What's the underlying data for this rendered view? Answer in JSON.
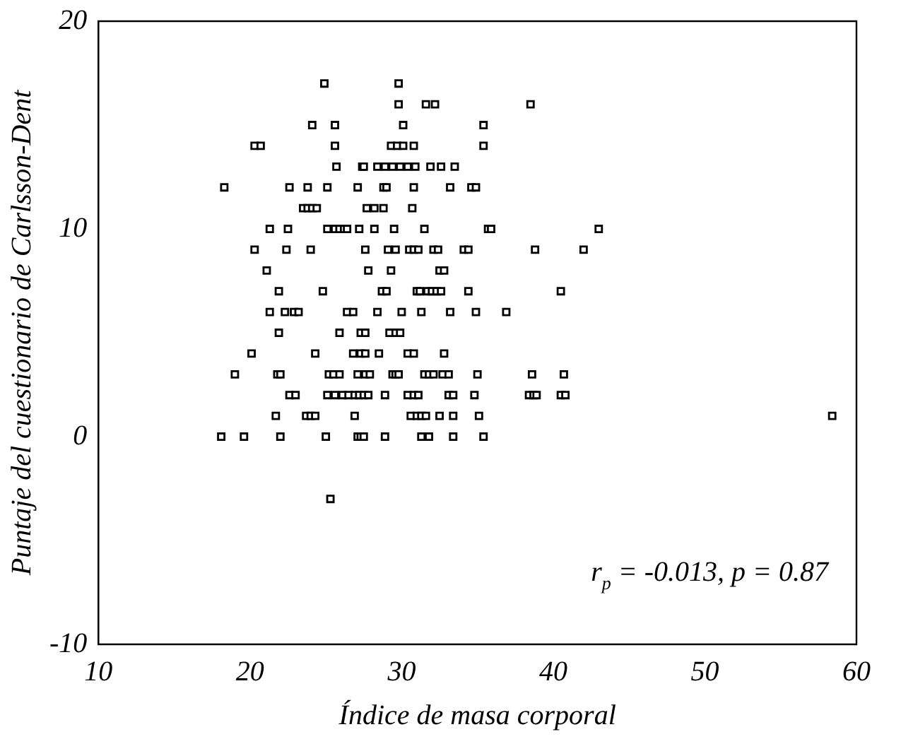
{
  "chart_data": {
    "type": "scatter",
    "xlabel": "Índice de masa corporal",
    "ylabel": "Puntaje del cuestionario de Carlsson-Dent",
    "marker": "square",
    "grid": false,
    "xlim": [
      10,
      60
    ],
    "xticks": [
      10,
      20,
      30,
      40,
      50,
      60
    ],
    "ylim": [
      -10,
      20
    ],
    "yticks": [
      -10,
      0,
      10,
      20
    ],
    "annotations": [
      "r$_{p}$ = -0.013, p = 0.87"
    ],
    "series": [
      {
        "color": "#000000",
        "x": [
          24.9,
          29.8,
          29.8,
          31.6,
          32.2,
          38.5,
          24.1,
          25.6,
          30.1,
          35.4,
          20.3,
          20.7,
          25.6,
          29.3,
          29.7,
          30.1,
          30.8,
          35.4,
          25.7,
          27.4,
          27.5,
          28.4,
          28.9,
          29.4,
          29.9,
          30.4,
          30.9,
          31.9,
          32.6,
          33.5,
          18.3,
          22.6,
          23.8,
          25.1,
          27.1,
          28.8,
          29.0,
          30.8,
          33.2,
          34.6,
          34.9,
          23.5,
          23.8,
          24.1,
          24.4,
          27.7,
          28.2,
          28.8,
          30.7,
          21.3,
          22.5,
          25.1,
          25.6,
          25.9,
          26.2,
          26.4,
          27.2,
          28.2,
          29.5,
          31.5,
          35.7,
          35.9,
          43.0,
          20.3,
          22.4,
          24.0,
          27.6,
          29.1,
          29.6,
          30.5,
          30.8,
          31.1,
          32.1,
          32.4,
          34.1,
          34.4,
          38.8,
          42.0,
          21.1,
          27.8,
          29.3,
          32.5,
          32.8,
          21.9,
          24.8,
          28.7,
          29.0,
          31.0,
          31.2,
          31.7,
          32.0,
          32.3,
          32.6,
          34.4,
          40.5,
          21.3,
          22.3,
          22.9,
          23.2,
          26.4,
          26.8,
          28.4,
          30.0,
          31.3,
          33.2,
          34.9,
          36.9,
          21.9,
          25.9,
          27.3,
          27.6,
          29.2,
          29.6,
          29.9,
          20.1,
          24.3,
          26.8,
          27.3,
          27.6,
          28.5,
          30.4,
          30.8,
          32.8,
          19.0,
          21.8,
          22.0,
          25.2,
          25.5,
          25.9,
          27.1,
          27.6,
          27.9,
          29.4,
          29.6,
          29.8,
          31.5,
          31.8,
          32.1,
          32.7,
          33.1,
          35.0,
          38.6,
          40.7,
          22.6,
          23.0,
          25.1,
          25.6,
          26.1,
          26.5,
          26.9,
          27.2,
          27.5,
          27.8,
          28.9,
          30.4,
          30.8,
          31.1,
          33.1,
          33.4,
          34.8,
          38.4,
          38.7,
          38.9,
          40.5,
          40.8,
          21.7,
          23.7,
          24.0,
          24.3,
          26.9,
          30.6,
          31.0,
          31.3,
          31.6,
          32.5,
          33.4,
          35.1,
          58.4,
          18.1,
          19.6,
          22.0,
          25.0,
          27.1,
          27.3,
          27.5,
          28.9,
          31.3,
          31.8,
          33.4,
          35.4,
          25.3
        ],
        "values": [
          17,
          17,
          16,
          16,
          16,
          16,
          15,
          15,
          15,
          15,
          14,
          14,
          14,
          14,
          14,
          14,
          14,
          14,
          13,
          13,
          13,
          13,
          13,
          13,
          13,
          13,
          13,
          13,
          13,
          13,
          12,
          12,
          12,
          12,
          12,
          12,
          12,
          12,
          12,
          12,
          12,
          11,
          11,
          11,
          11,
          11,
          11,
          11,
          11,
          10,
          10,
          10,
          10,
          10,
          10,
          10,
          10,
          10,
          10,
          10,
          10,
          10,
          10,
          9,
          9,
          9,
          9,
          9,
          9,
          9,
          9,
          9,
          9,
          9,
          9,
          9,
          9,
          9,
          8,
          8,
          8,
          8,
          8,
          7,
          7,
          7,
          7,
          7,
          7,
          7,
          7,
          7,
          7,
          7,
          7,
          6,
          6,
          6,
          6,
          6,
          6,
          6,
          6,
          6,
          6,
          6,
          6,
          5,
          5,
          5,
          5,
          5,
          5,
          5,
          4,
          4,
          4,
          4,
          4,
          4,
          4,
          4,
          4,
          3,
          3,
          3,
          3,
          3,
          3,
          3,
          3,
          3,
          3,
          3,
          3,
          3,
          3,
          3,
          3,
          3,
          3,
          3,
          3,
          2,
          2,
          2,
          2,
          2,
          2,
          2,
          2,
          2,
          2,
          2,
          2,
          2,
          2,
          2,
          2,
          2,
          2,
          2,
          2,
          2,
          2,
          1,
          1,
          1,
          1,
          1,
          1,
          1,
          1,
          1,
          1,
          1,
          1,
          1,
          0,
          0,
          0,
          0,
          0,
          0,
          0,
          0,
          0,
          0,
          0,
          0,
          -3
        ]
      }
    ]
  }
}
